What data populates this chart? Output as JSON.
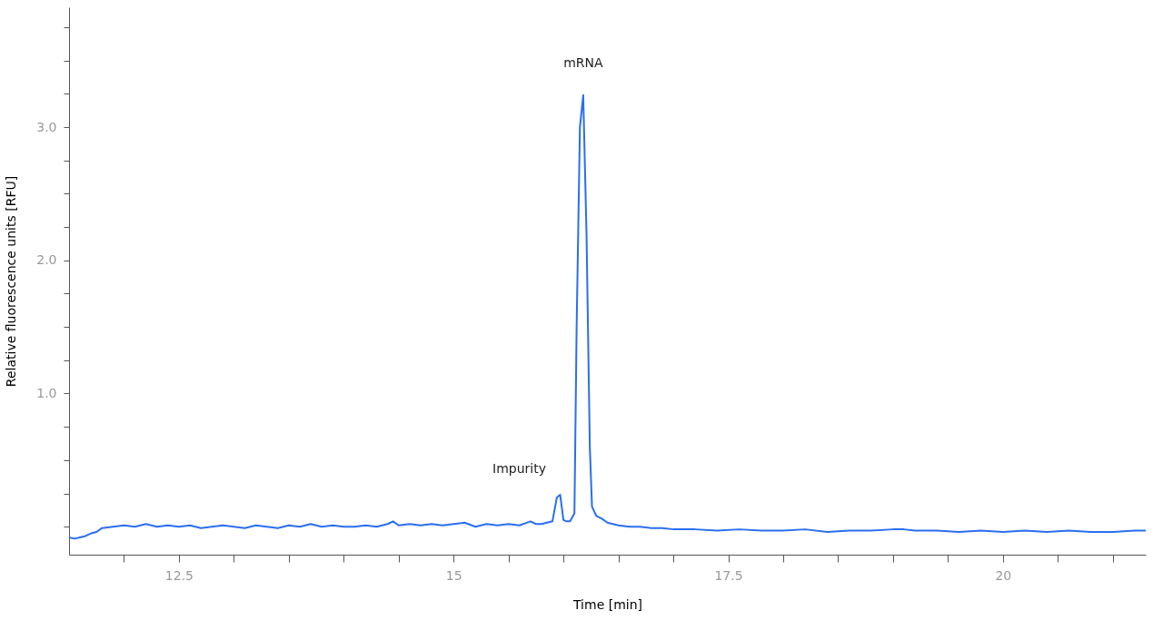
{
  "chart_data": {
    "type": "line",
    "xlabel": "Time [min]",
    "ylabel": "Relative fluorescence units [RFU]",
    "xlim": [
      11.5,
      21.3
    ],
    "ylim": [
      -0.21,
      3.9
    ],
    "xticks": [
      {
        "value": 12,
        "label": null
      },
      12.5,
      {
        "value": 13,
        "label": null
      },
      {
        "value": 13.5,
        "label": null
      },
      {
        "value": 14,
        "label": null
      },
      {
        "value": 14.5,
        "label": null
      },
      15,
      {
        "value": 15.5,
        "label": null
      },
      {
        "value": 16,
        "label": null
      },
      {
        "value": 16.5,
        "label": null
      },
      {
        "value": 17,
        "label": null
      },
      17.5,
      {
        "value": 18,
        "label": null
      },
      {
        "value": 18.5,
        "label": null
      },
      {
        "value": 19,
        "label": null
      },
      {
        "value": 19.5,
        "label": null
      },
      20,
      {
        "value": 20.5,
        "label": null
      },
      {
        "value": 21,
        "label": null
      }
    ],
    "yticks": [
      {
        "value": 0,
        "label": null
      },
      {
        "value": 0.25,
        "label": null
      },
      {
        "value": 0.5,
        "label": null
      },
      {
        "value": 0.75,
        "label": null
      },
      {
        "value": 1.0,
        "label": "1.0"
      },
      {
        "value": 1.25,
        "label": null
      },
      {
        "value": 1.5,
        "label": null
      },
      {
        "value": 1.75,
        "label": null
      },
      {
        "value": 2.0,
        "label": "2.0"
      },
      {
        "value": 2.25,
        "label": null
      },
      {
        "value": 2.5,
        "label": null
      },
      {
        "value": 2.75,
        "label": null
      },
      {
        "value": 3.0,
        "label": "3.0"
      },
      {
        "value": 3.25,
        "label": null
      },
      {
        "value": 3.5,
        "label": null
      },
      {
        "value": 3.75,
        "label": null
      }
    ],
    "grid": false,
    "marker": "none",
    "line_style": "solid",
    "annotations": [
      {
        "text": "mRNA",
        "x": 16.18,
        "y": 3.24
      },
      {
        "text": "Impurity",
        "x": 15.97,
        "y": 0.24
      }
    ],
    "series": [
      {
        "color": "#2a6ef0",
        "x": [
          11.5,
          11.55,
          11.6,
          11.65,
          11.7,
          11.75,
          11.8,
          11.9,
          12.0,
          12.1,
          12.2,
          12.3,
          12.4,
          12.5,
          12.6,
          12.7,
          12.8,
          12.9,
          13.0,
          13.1,
          13.2,
          13.3,
          13.4,
          13.5,
          13.6,
          13.7,
          13.8,
          13.9,
          14.0,
          14.1,
          14.2,
          14.3,
          14.4,
          14.45,
          14.5,
          14.6,
          14.7,
          14.8,
          14.9,
          15.0,
          15.1,
          15.2,
          15.3,
          15.4,
          15.5,
          15.6,
          15.7,
          15.75,
          15.8,
          15.85,
          15.9,
          15.94,
          15.97,
          16.0,
          16.03,
          16.06,
          16.1,
          16.12,
          16.15,
          16.18,
          16.21,
          16.24,
          16.26,
          16.3,
          16.35,
          16.4,
          16.45,
          16.5,
          16.6,
          16.7,
          16.8,
          16.9,
          17.0,
          17.2,
          17.4,
          17.6,
          17.8,
          18.0,
          18.2,
          18.4,
          18.6,
          18.8,
          19.0,
          19.1,
          19.2,
          19.4,
          19.6,
          19.8,
          20.0,
          20.2,
          20.4,
          20.6,
          20.8,
          21.0,
          21.2,
          21.3
        ],
        "values": [
          -0.08,
          -0.09,
          -0.08,
          -0.07,
          -0.05,
          -0.04,
          -0.01,
          0.0,
          0.01,
          0.0,
          0.02,
          0.0,
          0.01,
          0.0,
          0.01,
          -0.01,
          0.0,
          0.01,
          0.0,
          -0.01,
          0.01,
          0.0,
          -0.01,
          0.01,
          0.0,
          0.02,
          0.0,
          0.01,
          0.0,
          0.0,
          0.01,
          0.0,
          0.02,
          0.04,
          0.01,
          0.02,
          0.01,
          0.02,
          0.01,
          0.02,
          0.03,
          0.0,
          0.02,
          0.01,
          0.02,
          0.01,
          0.04,
          0.02,
          0.02,
          0.03,
          0.04,
          0.22,
          0.24,
          0.05,
          0.04,
          0.04,
          0.1,
          1.5,
          3.0,
          3.24,
          2.2,
          0.6,
          0.15,
          0.08,
          0.06,
          0.03,
          0.02,
          0.01,
          0.0,
          0.0,
          -0.01,
          -0.01,
          -0.02,
          -0.02,
          -0.03,
          -0.02,
          -0.03,
          -0.03,
          -0.02,
          -0.04,
          -0.03,
          -0.03,
          -0.02,
          -0.02,
          -0.03,
          -0.03,
          -0.04,
          -0.03,
          -0.04,
          -0.03,
          -0.04,
          -0.03,
          -0.04,
          -0.04,
          -0.03,
          -0.03
        ]
      }
    ]
  }
}
